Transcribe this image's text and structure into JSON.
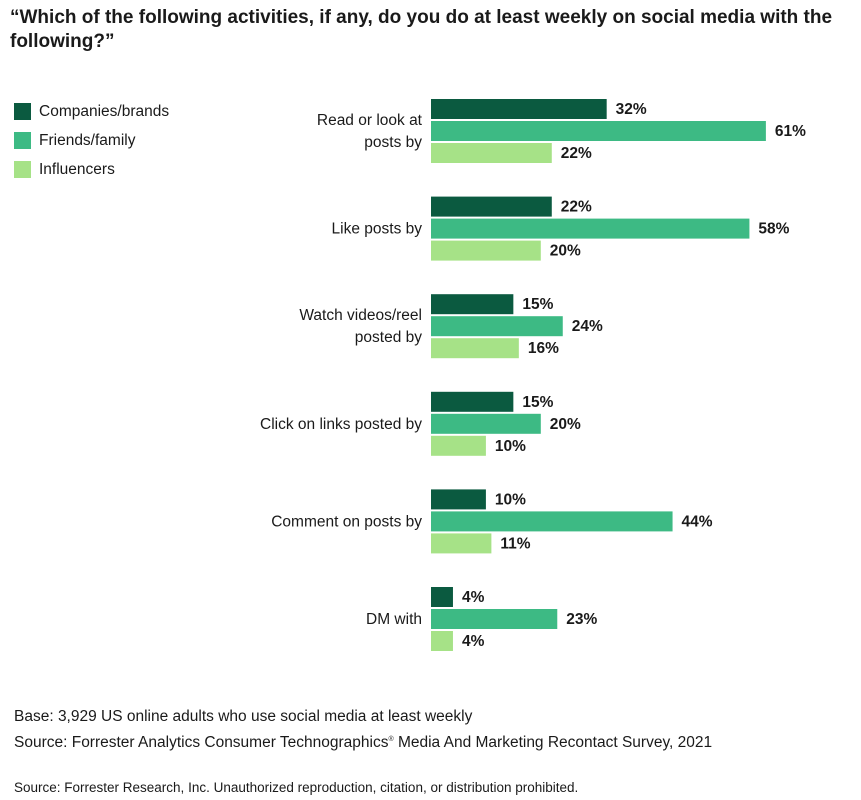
{
  "chart_data": {
    "type": "bar",
    "orientation": "horizontal",
    "title": "“Which of the following activities, if any, do you do at least weekly on social media with the following?”",
    "categories": [
      [
        "Read or look at",
        "posts by"
      ],
      [
        "Like posts by"
      ],
      [
        "Watch videos/reel",
        "posted by"
      ],
      [
        "Click on links posted by"
      ],
      [
        "Comment on posts by"
      ],
      [
        "DM with"
      ]
    ],
    "series": [
      {
        "name": "Companies/brands",
        "color": "#0b5a40",
        "values": [
          32,
          22,
          15,
          15,
          10,
          4
        ]
      },
      {
        "name": "Friends/family",
        "color": "#3dba84",
        "values": [
          61,
          58,
          24,
          20,
          44,
          23
        ]
      },
      {
        "name": "Influencers",
        "color": "#a6e287",
        "values": [
          22,
          20,
          16,
          10,
          11,
          4
        ]
      }
    ],
    "value_suffix": "%",
    "legend_position": "top-left",
    "grid": false,
    "xlim": [
      0,
      100
    ]
  },
  "footer": {
    "base": "Base: 3,929 US online adults who use social media at least weekly",
    "source_pre": "Source: Forrester Analytics Consumer Technographics",
    "source_reg": "®",
    "source_post": " Media And Marketing Recontact Survey, 2021",
    "copyright": "Source: Forrester Research, Inc. Unauthorized reproduction, citation, or distribution prohibited."
  }
}
